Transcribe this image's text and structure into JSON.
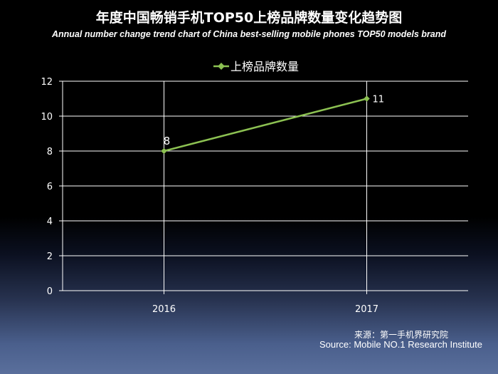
{
  "title": "年度中国畅销手机TOP50上榜品牌数量变化趋势图",
  "subtitle": "Annual number change trend chart of China best-selling mobile phones TOP50 models brand",
  "source_cn": "来源：第一手机界研究院",
  "source_en": "Source: Mobile NO.1 Research Institute",
  "chart_data": {
    "type": "line",
    "categories": [
      "2016",
      "2017"
    ],
    "series": [
      {
        "name": "上榜品牌数量",
        "values": [
          8,
          11
        ],
        "color": "#8cc152"
      }
    ],
    "ylim": [
      0,
      12
    ],
    "yticks": [
      0,
      2,
      4,
      6,
      8,
      10,
      12
    ],
    "grid": true,
    "legend": "top-center",
    "data_labels": [
      "8",
      "11"
    ]
  }
}
